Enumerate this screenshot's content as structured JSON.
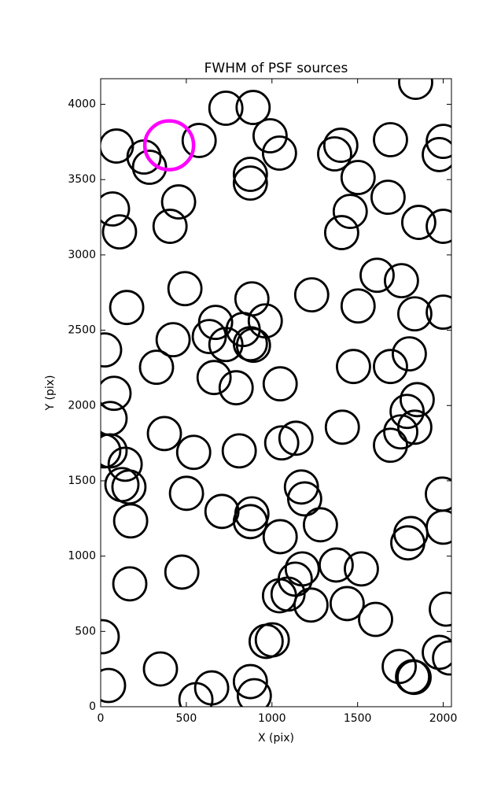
{
  "chart_data": {
    "type": "scatter",
    "title": "FWHM of PSF sources",
    "x_label": "X (pix)",
    "y_label": "Y (pix)",
    "xlim": [
      0,
      2048
    ],
    "ylim": [
      0,
      4170
    ],
    "xticks": [
      0,
      500,
      1000,
      1500,
      2000
    ],
    "yticks": [
      0,
      500,
      1000,
      1500,
      2000,
      2500,
      3000,
      3500,
      4000
    ],
    "grid": false,
    "series": [
      {
        "color": "#000000",
        "x": [
          1839,
          731,
          890,
          92,
          253,
          285,
          575,
          989,
          1044,
          1366,
          1402,
          1692,
          2000,
          1977,
          1503,
          874,
          874,
          69,
          110,
          455,
          405,
          1457,
          1407,
          1678,
          1857,
          2000,
          1614,
          1756,
          492,
          152,
          1232,
          1503,
          1834,
          2000,
          883,
          671,
          961,
          832,
          634,
          731,
          423,
          874,
          892,
          23,
          1802,
          326,
          1476,
          1692,
          662,
          791,
          1048,
          78,
          55,
          1848,
          1789,
          1411,
          1752,
          1834,
          372,
          543,
          809,
          1057,
          1140,
          1692,
          55,
          18,
          143,
          124,
          165,
          175,
          501,
          1172,
          1191,
          1995,
          708,
          883,
          874,
          1283,
          2000,
          1811,
          1793,
          1048,
          474,
          170,
          1177,
          1136,
          1375,
          1522,
          1044,
          1094,
          1228,
          1439,
          1605,
          2018,
          9,
          966,
          1002,
          46,
          349,
          556,
          648,
          874,
          897,
          1743,
          1821,
          1830,
          1977,
          2037
        ],
        "y": [
          4146,
          3974,
          3979,
          3723,
          3650,
          3582,
          3760,
          3791,
          3676,
          3671,
          3728,
          3765,
          3754,
          3666,
          3514,
          3535,
          3477,
          3305,
          3153,
          3352,
          3190,
          3289,
          3148,
          3383,
          3216,
          3190,
          2865,
          2829,
          2776,
          2651,
          2735,
          2661,
          2609,
          2620,
          2708,
          2552,
          2562,
          2505,
          2458,
          2405,
          2437,
          2410,
          2400,
          2369,
          2343,
          2254,
          2259,
          2259,
          2186,
          2118,
          2144,
          2081,
          1914,
          2039,
          1961,
          1856,
          1825,
          1856,
          1814,
          1689,
          1699,
          1752,
          1783,
          1736,
          1699,
          1699,
          1610,
          1475,
          1459,
          1234,
          1417,
          1459,
          1380,
          1412,
          1297,
          1281,
          1229,
          1208,
          1192,
          1150,
          1088,
          1129,
          894,
          816,
          915,
          847,
          941,
          915,
          737,
          748,
          675,
          685,
          580,
          648,
          465,
          434,
          444,
          141,
          251,
          47,
          125,
          167,
          73,
          267,
          199,
          195,
          361,
          324
        ]
      },
      {
        "color": "#ff00ff",
        "x": [
          400
        ],
        "y": [
          3728
        ]
      }
    ]
  }
}
